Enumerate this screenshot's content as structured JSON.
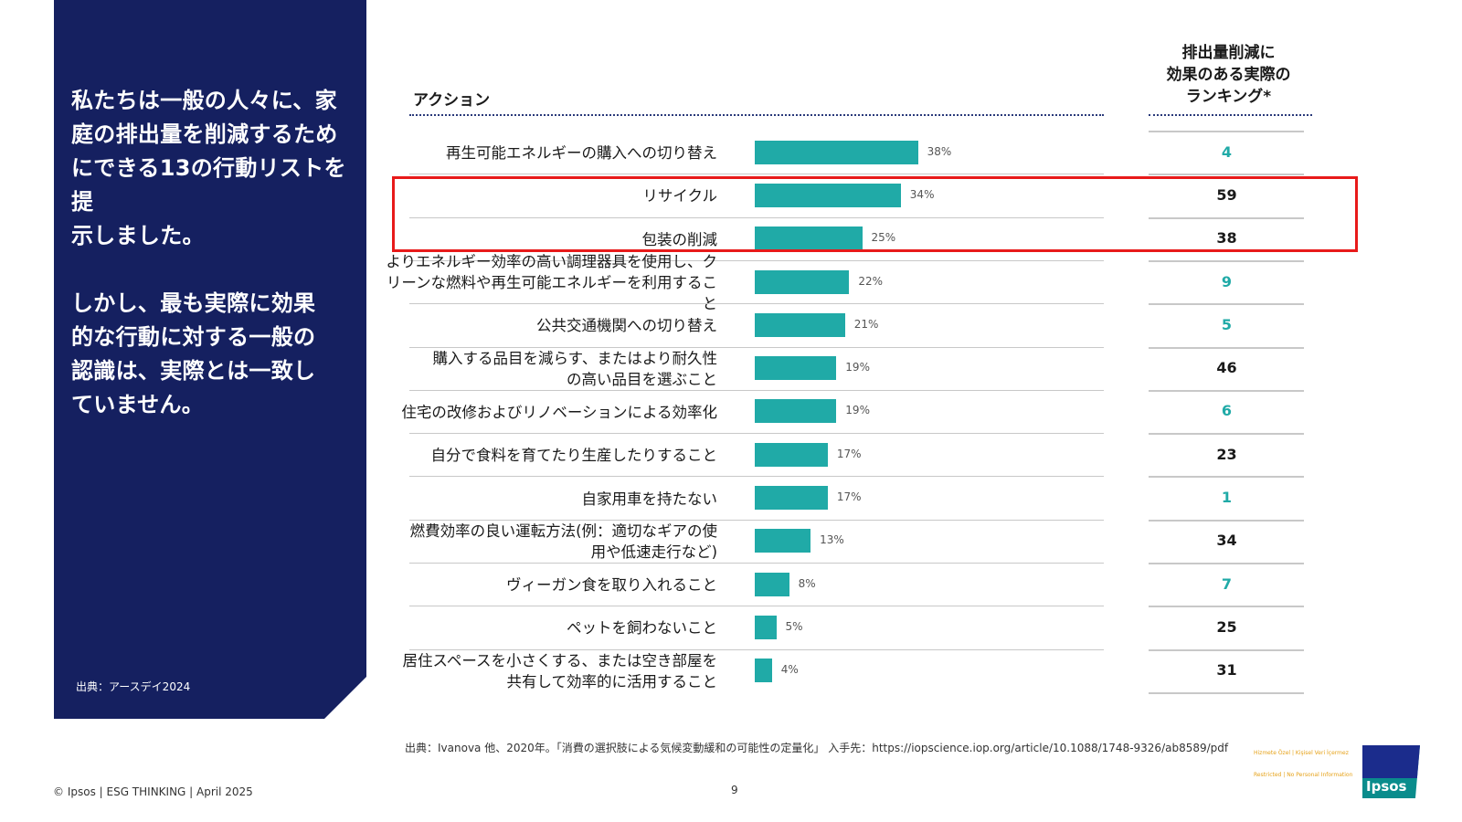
{
  "panel": {
    "headline": "私たちは一般の人々に、家\n庭の排出量を削減するため\nにできる13の行動リストを提\n示しました。\n\nしかし、最も実際に効果\n的な行動に対する一般の\n認識は、実際とは一致し\nていません。",
    "source": "出典：アースデイ2024"
  },
  "headers": {
    "action": "アクション",
    "ranking": "排出量削減に\n効果のある実際の\nランキング*"
  },
  "colors": {
    "bar": "#20aaa7",
    "panel": "#152060",
    "highlight": "#e81a1a",
    "rank_highlight": "#20aaa7"
  },
  "chart_data": {
    "type": "bar",
    "orientation": "horizontal",
    "categories": [
      "再生可能エネルギーの購入への切り替え",
      "リサイクル",
      "包装の削減",
      "よりエネルギー効率の高い調理器具を使用し、ク\nリーンな燃料や再生可能エネルギーを利用すること",
      "公共交通機関への切り替え",
      "購入する品目を減らす、またはより耐久性\nの高い品目を選ぶこと",
      "住宅の改修およびリノベーションによる効率化",
      "自分で食料を育てたり生産したりすること",
      "自家用車を持たない",
      "燃費効率の良い運転方法(例：適切なギアの使\n用や低速走行など)",
      "ヴィーガン食を取り入れること",
      "ペットを飼わないこと",
      "居住スペースを小さくする、または空き部屋を\n共有して効率的に活用すること"
    ],
    "values": [
      38,
      34,
      25,
      22,
      21,
      19,
      19,
      17,
      17,
      13,
      8,
      5,
      4
    ],
    "value_labels": [
      "38%",
      "34%",
      "25%",
      "22%",
      "21%",
      "19%",
      "19%",
      "17%",
      "17%",
      "13%",
      "8%",
      "5%",
      "4%"
    ],
    "ranks": [
      "4",
      "59",
      "38",
      "9",
      "5",
      "46",
      "6",
      "23",
      "1",
      "34",
      "7",
      "25",
      "31"
    ],
    "rank_highlighted": [
      true,
      false,
      false,
      true,
      true,
      false,
      true,
      false,
      true,
      false,
      true,
      false,
      false
    ],
    "highlighted_rows": [
      1,
      2
    ],
    "xlim": [
      0,
      100
    ]
  },
  "footer": {
    "source_note": "出典：Ivanova 他、2020年。「消費の選択肢による気候変動緩和の可能性の定量化」 入手先：https://iopscience.iop.org/article/10.1088/1748-9326/ab8589/pdf",
    "copyright": "© Ipsos | ESG THINKING | April 2025",
    "page": "9",
    "classification_1": "Hizmete Özel | Kişisel Veri İçermez",
    "classification_2": "Restricted | No Personal Information",
    "logo": "Ipsos"
  }
}
